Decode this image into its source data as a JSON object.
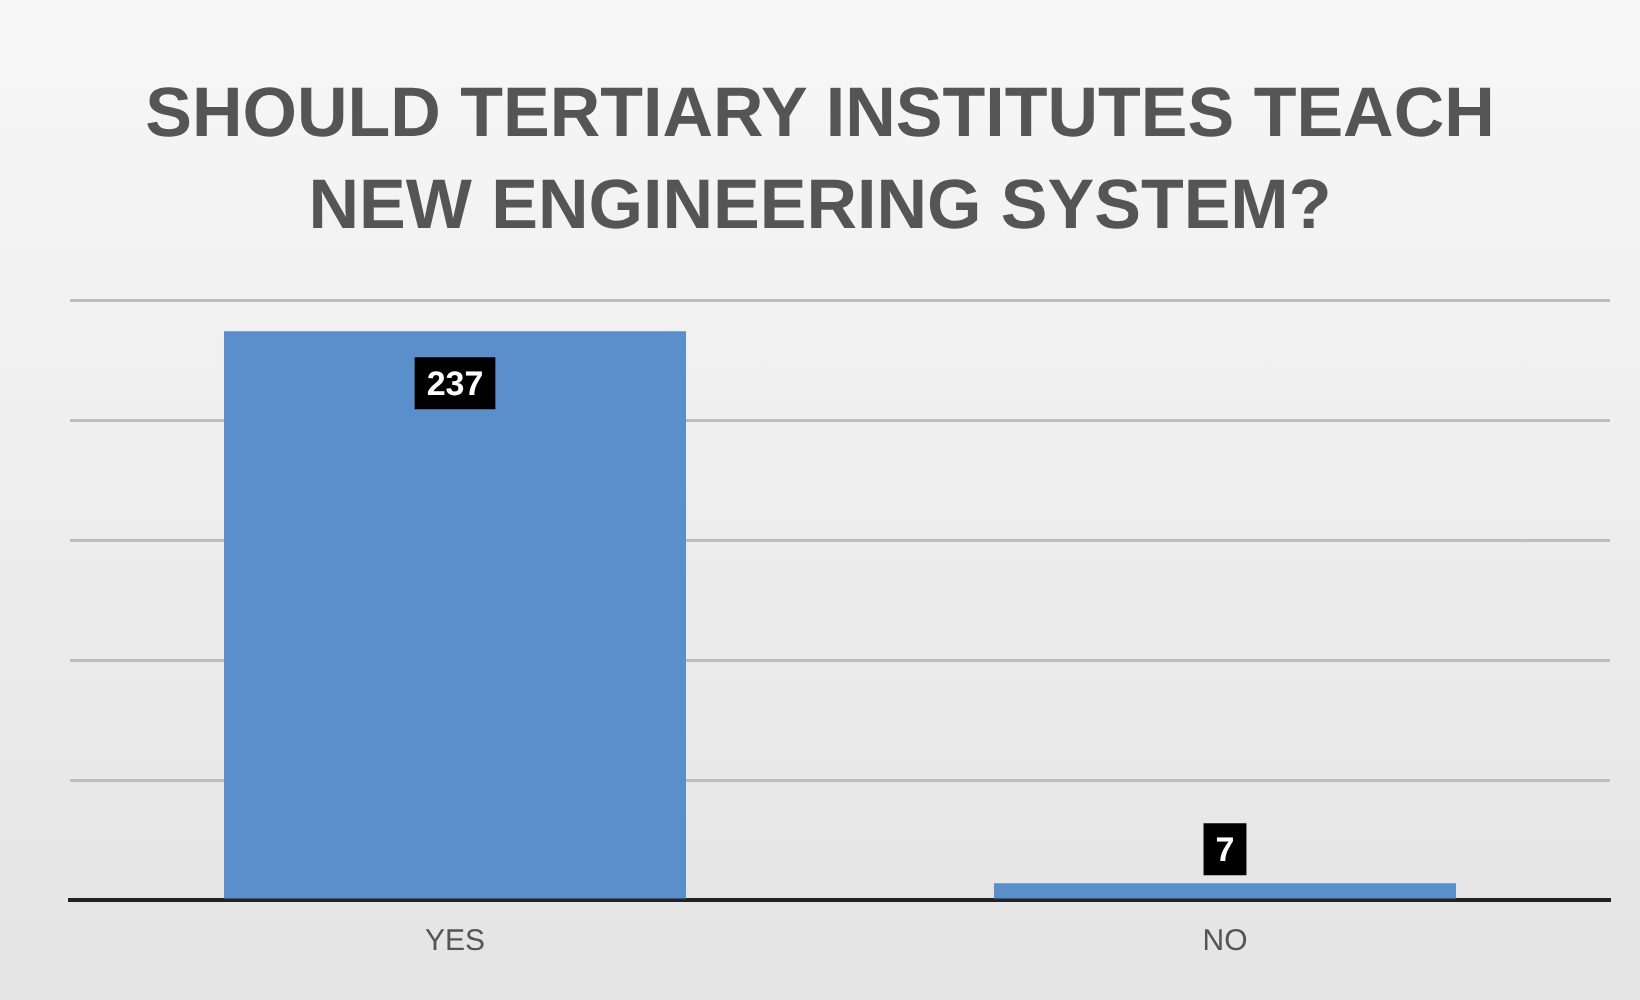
{
  "chart_data": {
    "type": "bar",
    "title": "SHOULD TERTIARY INSTITUTES TEACH NEW ENGINEERING SYSTEM?",
    "categories": [
      "YES",
      "NO"
    ],
    "values": [
      237,
      7
    ],
    "color": "#5b8fcb",
    "ylim": [
      0,
      250
    ],
    "yticks": [
      0,
      {
        "value": 50,
        "label": null
      },
      {
        "value": 100,
        "label": null
      },
      {
        "value": 150,
        "label": null
      },
      {
        "value": 200,
        "label": null
      },
      {
        "value": 250,
        "label": null
      }
    ],
    "tick_labels": "x",
    "grid": "y",
    "data_labels": true
  }
}
